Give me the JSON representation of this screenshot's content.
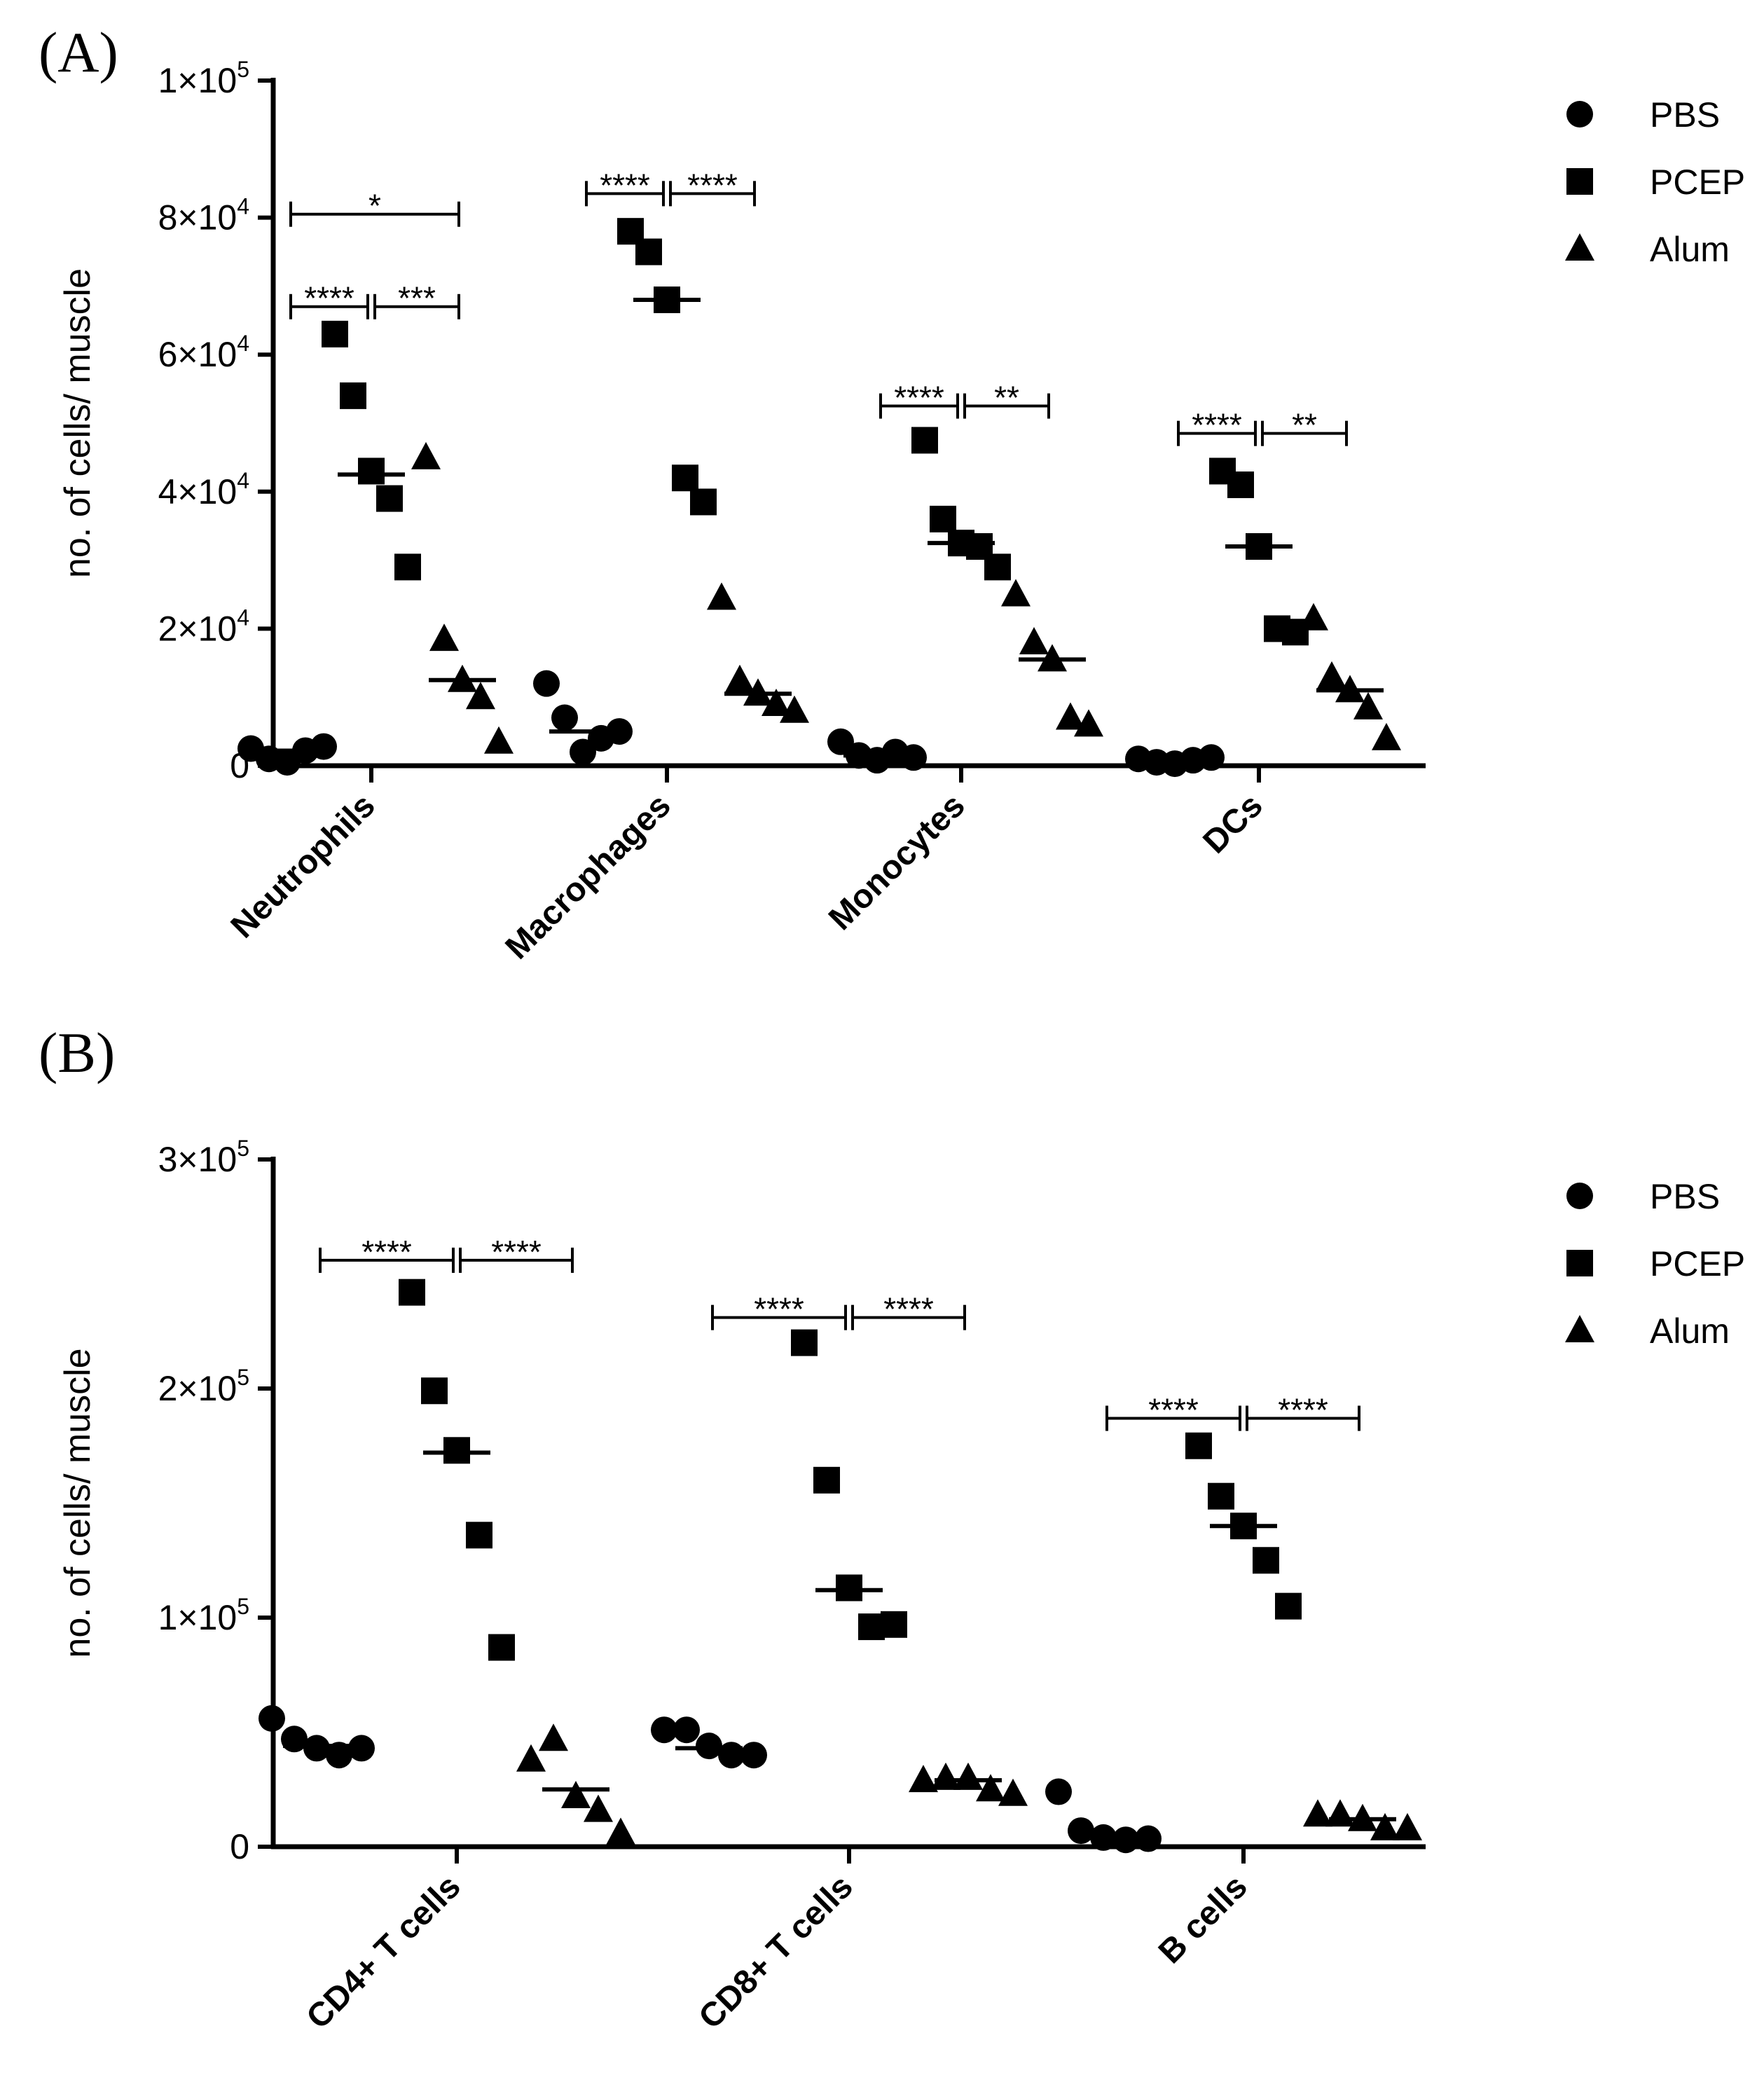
{
  "chart_data": [
    {
      "panel_label": "(A)",
      "type": "scatter",
      "ylabel": "no. of cells/ muscle",
      "xlabel": "",
      "ylim": [
        0,
        100000
      ],
      "yticks": [
        {
          "value": 0,
          "mantissa": "0",
          "exponent": ""
        },
        {
          "value": 20000,
          "mantissa": "2×10",
          "exponent": "4"
        },
        {
          "value": 40000,
          "mantissa": "4×10",
          "exponent": "4"
        },
        {
          "value": 60000,
          "mantissa": "6×10",
          "exponent": "4"
        },
        {
          "value": 80000,
          "mantissa": "8×10",
          "exponent": "4"
        },
        {
          "value": 100000,
          "mantissa": "1×10",
          "exponent": "5"
        }
      ],
      "categories": [
        "Neutrophils",
        "Macrophages",
        "Monocytes",
        "DCs"
      ],
      "legend": [
        {
          "name": "PBS",
          "marker": "circle"
        },
        {
          "name": "PCEP",
          "marker": "square"
        },
        {
          "name": "Alum",
          "marker": "triangle"
        }
      ],
      "series": [
        {
          "name": "PBS",
          "marker": "circle",
          "points": [
            [
              0,
              0,
              2500
            ],
            [
              1,
              0,
              1000
            ],
            [
              2,
              0,
              500
            ],
            [
              3,
              0,
              2200
            ],
            [
              4,
              0,
              2800
            ],
            [
              0,
              1,
              12000
            ],
            [
              1,
              1,
              7000
            ],
            [
              2,
              1,
              2000
            ],
            [
              3,
              1,
              4000
            ],
            [
              4,
              1,
              5000
            ],
            [
              0,
              2,
              3500
            ],
            [
              1,
              2,
              1500
            ],
            [
              2,
              2,
              800
            ],
            [
              3,
              2,
              2000
            ],
            [
              4,
              2,
              1200
            ],
            [
              0,
              3,
              1000
            ],
            [
              1,
              3,
              500
            ],
            [
              2,
              3,
              300
            ],
            [
              3,
              3,
              800
            ],
            [
              4,
              3,
              1200
            ]
          ],
          "medians": [
            2200,
            5000,
            1500,
            800
          ]
        },
        {
          "name": "PCEP",
          "marker": "square",
          "points": [
            [
              0,
              0,
              63000
            ],
            [
              1,
              0,
              54000
            ],
            [
              2,
              0,
              43000
            ],
            [
              3,
              0,
              39000
            ],
            [
              4,
              0,
              29000
            ],
            [
              0,
              1,
              78000
            ],
            [
              1,
              1,
              75000
            ],
            [
              2,
              1,
              68000
            ],
            [
              3,
              1,
              42000
            ],
            [
              4,
              1,
              38500
            ],
            [
              0,
              2,
              47500
            ],
            [
              1,
              2,
              36000
            ],
            [
              2,
              2,
              32500
            ],
            [
              3,
              2,
              32000
            ],
            [
              4,
              2,
              29000
            ],
            [
              0,
              3,
              43000
            ],
            [
              1,
              3,
              41000
            ],
            [
              2,
              3,
              32000
            ],
            [
              3,
              3,
              20000
            ],
            [
              4,
              3,
              19500
            ]
          ],
          "medians": [
            42500,
            68000,
            32500,
            32000
          ]
        },
        {
          "name": "Alum",
          "marker": "triangle",
          "points": [
            [
              0,
              0,
              45000
            ],
            [
              1,
              0,
              18500
            ],
            [
              2,
              0,
              12500
            ],
            [
              3,
              0,
              10000
            ],
            [
              4,
              0,
              3500
            ],
            [
              0,
              1,
              24500
            ],
            [
              1,
              1,
              12500
            ],
            [
              2,
              1,
              10500
            ],
            [
              3,
              1,
              9000
            ],
            [
              4,
              1,
              8000
            ],
            [
              0,
              2,
              25000
            ],
            [
              1,
              2,
              18000
            ],
            [
              2,
              2,
              15500
            ],
            [
              3,
              2,
              7000
            ],
            [
              4,
              2,
              6000
            ],
            [
              0,
              3,
              21500
            ],
            [
              1,
              3,
              13000
            ],
            [
              2,
              3,
              11000
            ],
            [
              3,
              3,
              8500
            ],
            [
              4,
              3,
              4000
            ]
          ],
          "medians": [
            12500,
            10500,
            15500,
            11000
          ]
        }
      ],
      "significance": [
        {
          "category": 0,
          "from": "PBS",
          "to": "PCEP",
          "level": 67000,
          "label": "****"
        },
        {
          "category": 0,
          "from": "PCEP",
          "to": "Alum",
          "level": 67000,
          "label": "***"
        },
        {
          "category": 0,
          "from": "PBS",
          "to": "Alum",
          "level": 80500,
          "label": "*"
        },
        {
          "category": 1,
          "from": "PBS",
          "to": "PCEP",
          "level": 83500,
          "label": "****"
        },
        {
          "category": 1,
          "from": "PCEP",
          "to": "Alum",
          "level": 83500,
          "label": "****"
        },
        {
          "category": 2,
          "from": "PBS",
          "to": "PCEP",
          "level": 52500,
          "label": "****"
        },
        {
          "category": 2,
          "from": "PCEP",
          "to": "Alum",
          "level": 52500,
          "label": "**"
        },
        {
          "category": 3,
          "from": "PBS",
          "to": "PCEP",
          "level": 48500,
          "label": "****"
        },
        {
          "category": 3,
          "from": "PCEP",
          "to": "Alum",
          "level": 48500,
          "label": "**"
        }
      ]
    },
    {
      "panel_label": "(B)",
      "type": "scatter",
      "ylabel": "no. of cells/ muscle",
      "xlabel": "",
      "ylim": [
        0,
        300000
      ],
      "yticks": [
        {
          "value": 0,
          "mantissa": "0",
          "exponent": ""
        },
        {
          "value": 100000,
          "mantissa": "1×10",
          "exponent": "5"
        },
        {
          "value": 200000,
          "mantissa": "2×10",
          "exponent": "5"
        },
        {
          "value": 300000,
          "mantissa": "3×10",
          "exponent": "5"
        }
      ],
      "categories": [
        "CD4+ T cells",
        "CD8+ T cells",
        "B cells"
      ],
      "legend": [
        {
          "name": "PBS",
          "marker": "circle"
        },
        {
          "name": "PCEP",
          "marker": "square"
        },
        {
          "name": "Alum",
          "marker": "triangle"
        }
      ],
      "series": [
        {
          "name": "PBS",
          "marker": "circle",
          "points": [
            [
              0,
              0,
              56000
            ],
            [
              1,
              0,
              47000
            ],
            [
              2,
              0,
              43000
            ],
            [
              3,
              0,
              40000
            ],
            [
              4,
              0,
              43000
            ],
            [
              0,
              1,
              51000
            ],
            [
              1,
              1,
              51000
            ],
            [
              2,
              1,
              44000
            ],
            [
              3,
              1,
              40000
            ],
            [
              4,
              1,
              40000
            ],
            [
              0,
              2,
              24000
            ],
            [
              1,
              2,
              7000
            ],
            [
              2,
              2,
              4000
            ],
            [
              3,
              2,
              3000
            ],
            [
              4,
              2,
              3500
            ]
          ],
          "medians": [
            44000,
            43000,
            5000
          ]
        },
        {
          "name": "PCEP",
          "marker": "square",
          "points": [
            [
              0,
              0,
              242000
            ],
            [
              1,
              0,
              199000
            ],
            [
              2,
              0,
              173000
            ],
            [
              3,
              0,
              136000
            ],
            [
              4,
              0,
              87000
            ],
            [
              0,
              1,
              220000
            ],
            [
              1,
              1,
              160000
            ],
            [
              2,
              1,
              113000
            ],
            [
              3,
              1,
              96000
            ],
            [
              4,
              1,
              97000
            ],
            [
              0,
              2,
              175000
            ],
            [
              1,
              2,
              153000
            ],
            [
              2,
              2,
              140000
            ],
            [
              3,
              2,
              125000
            ],
            [
              4,
              2,
              105000
            ]
          ],
          "medians": [
            172000,
            112000,
            140000
          ]
        },
        {
          "name": "Alum",
          "marker": "triangle",
          "points": [
            [
              0,
              0,
              38000
            ],
            [
              1,
              0,
              47000
            ],
            [
              2,
              0,
              22000
            ],
            [
              3,
              0,
              16000
            ],
            [
              4,
              0,
              6000
            ],
            [
              0,
              1,
              29000
            ],
            [
              1,
              1,
              30000
            ],
            [
              2,
              1,
              30000
            ],
            [
              3,
              1,
              25000
            ],
            [
              4,
              1,
              23000
            ],
            [
              0,
              2,
              14000
            ],
            [
              1,
              2,
              14000
            ],
            [
              2,
              2,
              12000
            ],
            [
              3,
              2,
              8000
            ],
            [
              4,
              2,
              8000
            ]
          ],
          "medians": [
            25000,
            29000,
            12000
          ]
        }
      ],
      "significance": [
        {
          "category": 0,
          "from": "PBS",
          "to": "PCEP",
          "level": 256000,
          "label": "****"
        },
        {
          "category": 0,
          "from": "PCEP",
          "to": "Alum",
          "level": 256000,
          "label": "****"
        },
        {
          "category": 1,
          "from": "PBS",
          "to": "PCEP",
          "level": 231000,
          "label": "****"
        },
        {
          "category": 1,
          "from": "PCEP",
          "to": "Alum",
          "level": 231000,
          "label": "****"
        },
        {
          "category": 2,
          "from": "PBS",
          "to": "PCEP",
          "level": 187000,
          "label": "****"
        },
        {
          "category": 2,
          "from": "PCEP",
          "to": "Alum",
          "level": 187000,
          "label": "****"
        }
      ]
    }
  ]
}
